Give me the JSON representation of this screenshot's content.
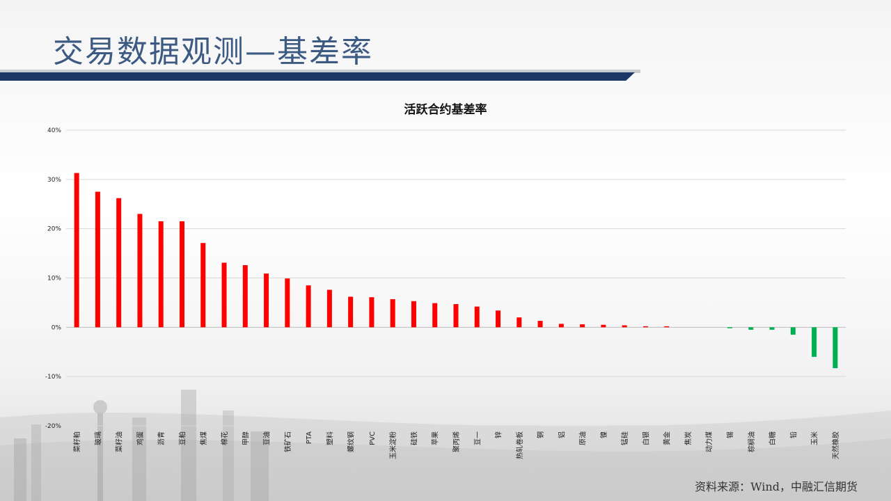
{
  "slide": {
    "title": "交易数据观测—基差率",
    "source": "资料来源：Wind，中融汇信期货"
  },
  "colors": {
    "positive": "#ff0000",
    "negative": "#00b050",
    "title_bar": "#1c3766",
    "title_text": "#3c5a82"
  },
  "chart_data": {
    "type": "bar",
    "title": "活跃合约基差率",
    "xlabel": "",
    "ylabel": "",
    "ylim": [
      -20,
      40
    ],
    "yticks": [
      40,
      30,
      20,
      10,
      0,
      -10,
      -20
    ],
    "ytick_labels": [
      "40%",
      "30%",
      "20%",
      "10%",
      "0%",
      "-10%",
      "-20%"
    ],
    "grid": true,
    "legend": "none",
    "categories": [
      "菜籽粕",
      "玻璃",
      "菜籽油",
      "鸡蛋",
      "沥青",
      "豆粕",
      "焦煤",
      "棉花",
      "甲醇",
      "豆油",
      "铁矿石",
      "PTA",
      "塑料",
      "螺纹钢",
      "PVC",
      "玉米淀粉",
      "硅铁",
      "苹果",
      "聚丙烯",
      "豆一",
      "锌",
      "热轧卷板",
      "铜",
      "铝",
      "原油",
      "镍",
      "锰硅",
      "白银",
      "黄金",
      "焦炭",
      "动力煤",
      "锡",
      "棕榈油",
      "白糖",
      "铅",
      "玉米",
      "天然橡胶"
    ],
    "values": [
      31.3,
      27.5,
      26.2,
      23.0,
      21.5,
      21.5,
      17.1,
      13.1,
      12.6,
      10.9,
      9.9,
      8.5,
      7.6,
      6.2,
      6.1,
      5.7,
      5.3,
      4.9,
      4.7,
      4.2,
      3.4,
      2.0,
      1.3,
      0.7,
      0.6,
      0.5,
      0.4,
      0.2,
      0.2,
      0.0,
      0.0,
      -0.2,
      -0.5,
      -0.5,
      -1.5,
      -6.0,
      -8.3
    ]
  }
}
